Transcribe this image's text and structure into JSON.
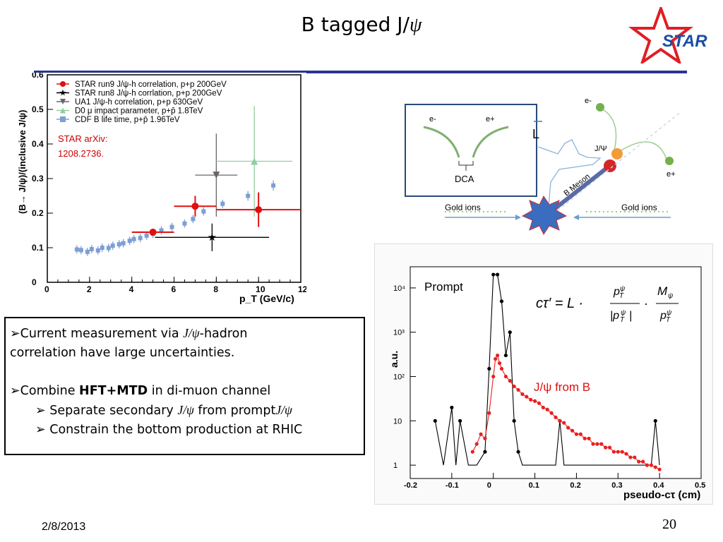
{
  "slide": {
    "title_prefix": "B tagged J/",
    "title_psi": "ψ",
    "logo_text": "STAR",
    "date": "2/8/2013",
    "page": "20"
  },
  "bullets": {
    "b1_prefix": "Current measurement via ",
    "b1_jpsi": "J/ψ",
    "b1_suffix": "-hadron",
    "b1_line2": "correlation have large uncertainties.",
    "b2_prefix": "Combine ",
    "b2_bold": "HFT+MTD",
    "b2_suffix": " in di-muon channel",
    "s1_prefix": "Separate secondary ",
    "s1_jpsi1": "J/ψ",
    "s1_mid": " from prompt",
    "s1_jpsi2": "J/ψ",
    "s2": "Constrain the bottom production at RHIC",
    "marker": "➢"
  },
  "diagram": {
    "e_minus": "e-",
    "e_plus": "e+",
    "dca": "DCA",
    "L": "L",
    "jpsi": "J/Ψ",
    "b_meson": "B Meson",
    "gold_left": "Gold ions",
    "gold_right": "Gold ions",
    "e_minus2": "e-",
    "e_plus2": "e+"
  },
  "chart_data": [
    {
      "type": "scatter",
      "title": "",
      "xlabel": "p_T (GeV/c)",
      "ylabel": "(B→ J/ψ)/(inclusive J/ψ)",
      "xlim": [
        0,
        12
      ],
      "ylim": [
        0,
        0.6
      ],
      "xticks": [
        "0",
        "2",
        "4",
        "6",
        "8",
        "10",
        "12"
      ],
      "yticks": [
        "0",
        "0.1",
        "0.2",
        "0.3",
        "0.4",
        "0.5",
        "0.6"
      ],
      "annotation": [
        "STAR arXiv:",
        "1208.2736."
      ],
      "legend_position": "top-left",
      "series": [
        {
          "name": "STAR run9 J/ψ-h correlation, p+p 200GeV",
          "color": "#e01010",
          "marker": "circle",
          "points": [
            [
              5.0,
              0.145,
              1.0,
              0.01
            ],
            [
              7.0,
              0.22,
              1.0,
              0.03
            ],
            [
              10.0,
              0.21,
              2.0,
              0.05
            ]
          ]
        },
        {
          "name": "STAR run8 J/ψ-h corrlation, p+p 200GeV",
          "color": "#000000",
          "marker": "star",
          "points": [
            [
              7.8,
              0.13,
              2.7,
              0.04
            ]
          ]
        },
        {
          "name": "UA1 J/ψ-h correlation, p+p 630GeV",
          "color": "#666666",
          "marker": "triangle-down",
          "points": [
            [
              8.0,
              0.31,
              1.0,
              0.12
            ]
          ]
        },
        {
          "name": "D0 μ impact parameter, p+p̄ 1.8TeV",
          "color": "#8fcf9e",
          "marker": "triangle-up",
          "points": [
            [
              9.8,
              0.35,
              1.8,
              0.16
            ]
          ]
        },
        {
          "name": "CDF B life time, p+p̄ 1.96TeV",
          "color": "#7c9fd4",
          "marker": "square",
          "points": [
            [
              1.4,
              0.095,
              0,
              0.012
            ],
            [
              1.6,
              0.093,
              0,
              0.012
            ],
            [
              1.9,
              0.088,
              0,
              0.012
            ],
            [
              2.1,
              0.096,
              0,
              0.012
            ],
            [
              2.4,
              0.092,
              0,
              0.012
            ],
            [
              2.6,
              0.1,
              0,
              0.012
            ],
            [
              2.9,
              0.099,
              0,
              0.012
            ],
            [
              3.1,
              0.106,
              0,
              0.012
            ],
            [
              3.4,
              0.11,
              0,
              0.012
            ],
            [
              3.6,
              0.113,
              0,
              0.012
            ],
            [
              3.9,
              0.12,
              0,
              0.012
            ],
            [
              4.1,
              0.125,
              0,
              0.012
            ],
            [
              4.4,
              0.128,
              0,
              0.012
            ],
            [
              4.7,
              0.135,
              0,
              0.012
            ],
            [
              5.0,
              0.14,
              0,
              0.012
            ],
            [
              5.4,
              0.15,
              0,
              0.012
            ],
            [
              5.9,
              0.16,
              0,
              0.012
            ],
            [
              6.5,
              0.17,
              0,
              0.012
            ],
            [
              6.9,
              0.183,
              0,
              0.012
            ],
            [
              7.4,
              0.205,
              0,
              0.012
            ],
            [
              8.3,
              0.227,
              0,
              0.012
            ],
            [
              9.5,
              0.25,
              0,
              0.014
            ],
            [
              10.7,
              0.28,
              0,
              0.015
            ]
          ]
        }
      ]
    },
    {
      "type": "line",
      "title": "",
      "xlabel": "pseudo-cτ (cm)",
      "ylabel": "a.u.",
      "xlim": [
        -0.2,
        0.5
      ],
      "y_scale": "log",
      "ylim": [
        0.5,
        30000
      ],
      "xticks": [
        "-0.2",
        "-0.1",
        "0",
        "0.1",
        "0.2",
        "0.3",
        "0.4",
        "0.5"
      ],
      "yticks": [
        "1",
        "10",
        "10²",
        "10³",
        "10⁴"
      ],
      "annotations": [
        "Prompt",
        "J/ψ from B"
      ],
      "formula": "cτ′ = L · p_T^ψ/|p_T^ψ| · M_ψ/p_T^ψ",
      "series": [
        {
          "name": "Prompt",
          "color": "#000000",
          "x": [
            -0.14,
            -0.12,
            -0.1,
            -0.09,
            -0.08,
            -0.06,
            -0.04,
            -0.02,
            -0.01,
            0.0,
            0.01,
            0.02,
            0.03,
            0.04,
            0.05,
            0.06,
            0.07,
            0.08,
            0.09,
            0.1,
            0.11,
            0.12,
            0.13,
            0.14,
            0.15,
            0.16,
            0.17,
            0.18,
            0.2,
            0.25,
            0.3,
            0.35,
            0.38,
            0.39,
            0.4
          ],
          "y": [
            10,
            1,
            20,
            1,
            10,
            1,
            1,
            2,
            150,
            20000,
            20000,
            5000,
            300,
            1000,
            10,
            2,
            1,
            1,
            1,
            1,
            1,
            1,
            1,
            1,
            1,
            10,
            1,
            1,
            1,
            1,
            1,
            1,
            1,
            10,
            1
          ]
        },
        {
          "name": "J/ψ from B",
          "color": "#e82020",
          "x": [
            -0.05,
            -0.04,
            -0.03,
            -0.02,
            -0.01,
            0.0,
            0.005,
            0.01,
            0.015,
            0.02,
            0.03,
            0.04,
            0.05,
            0.06,
            0.07,
            0.08,
            0.09,
            0.1,
            0.11,
            0.12,
            0.13,
            0.14,
            0.15,
            0.16,
            0.17,
            0.18,
            0.19,
            0.2,
            0.21,
            0.22,
            0.23,
            0.24,
            0.25,
            0.26,
            0.27,
            0.28,
            0.29,
            0.3,
            0.31,
            0.32,
            0.33,
            0.34,
            0.35,
            0.36,
            0.37,
            0.38,
            0.39,
            0.4
          ],
          "y": [
            2,
            3,
            5,
            4,
            15,
            100,
            250,
            300,
            200,
            150,
            100,
            80,
            60,
            50,
            40,
            35,
            30,
            28,
            25,
            20,
            18,
            15,
            12,
            10,
            9,
            7,
            6,
            5,
            5,
            4,
            4,
            3,
            3,
            3,
            2.5,
            2.5,
            2,
            2,
            2,
            1.8,
            1.5,
            1.5,
            1.2,
            1.2,
            1,
            1,
            0.9,
            0.8
          ]
        }
      ]
    }
  ]
}
